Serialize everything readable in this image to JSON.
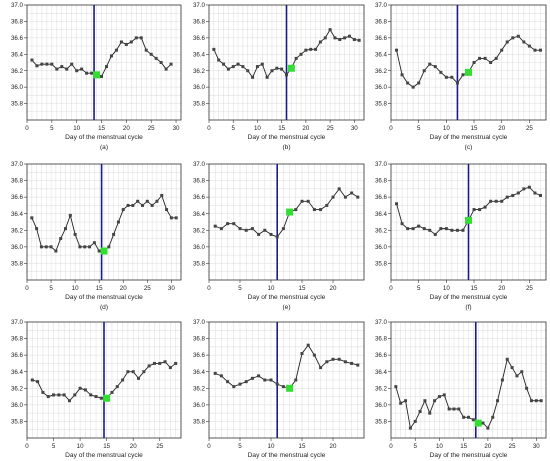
{
  "figure": {
    "x_axis_label": "Day of the menstrual cycle"
  },
  "colors": {
    "grid": "#d7d7d7",
    "frame": "#333333",
    "line": "#222222",
    "marker": "#444444",
    "ovulation_line": "#1a1a8c",
    "ovulation_marker": "#33dd33"
  },
  "chart_data": [
    {
      "type": "line",
      "label": "(a)",
      "xlim": [
        0,
        31
      ],
      "ylim": [
        35.6,
        37.0
      ],
      "xticks": [
        0,
        5,
        10,
        15,
        20,
        25,
        30
      ],
      "yticks": [
        35.8,
        36.0,
        36.2,
        36.4,
        36.6,
        36.8,
        37.0
      ],
      "ovulation_day": 13.5,
      "ovulation_point": {
        "x": 14,
        "y": 36.15
      },
      "x": [
        1,
        2,
        3,
        4,
        5,
        6,
        7,
        8,
        9,
        10,
        11,
        12,
        13,
        14,
        15,
        16,
        17,
        18,
        19,
        20,
        21,
        22,
        23,
        24,
        25,
        26,
        27,
        28,
        29
      ],
      "y": [
        36.33,
        36.26,
        36.28,
        36.28,
        36.28,
        36.22,
        36.25,
        36.22,
        36.28,
        36.2,
        36.22,
        36.17,
        36.17,
        36.15,
        36.13,
        36.25,
        36.38,
        36.45,
        36.55,
        36.52,
        36.55,
        36.6,
        36.6,
        36.45,
        36.4,
        36.35,
        36.3,
        36.22,
        36.28
      ]
    },
    {
      "type": "line",
      "label": "(b)",
      "xlim": [
        0,
        32
      ],
      "ylim": [
        35.6,
        37.0
      ],
      "xticks": [
        0,
        5,
        10,
        15,
        20,
        25,
        30
      ],
      "yticks": [
        35.8,
        36.0,
        36.2,
        36.4,
        36.6,
        36.8,
        37.0
      ],
      "ovulation_day": 16,
      "ovulation_point": {
        "x": 17,
        "y": 36.23
      },
      "x": [
        1,
        2,
        3,
        4,
        5,
        6,
        7,
        8,
        9,
        10,
        11,
        12,
        13,
        14,
        15,
        16,
        17,
        18,
        19,
        20,
        21,
        22,
        23,
        24,
        25,
        26,
        27,
        28,
        29,
        30,
        31
      ],
      "y": [
        36.46,
        36.33,
        36.28,
        36.22,
        36.25,
        36.28,
        36.25,
        36.2,
        36.12,
        36.25,
        36.28,
        36.12,
        36.2,
        36.23,
        36.22,
        36.15,
        36.23,
        36.35,
        36.4,
        36.45,
        36.46,
        36.46,
        36.55,
        36.6,
        36.7,
        36.6,
        36.58,
        36.6,
        36.62,
        36.58,
        36.57
      ]
    },
    {
      "type": "line",
      "label": "(c)",
      "xlim": [
        0,
        28
      ],
      "ylim": [
        35.6,
        37.0
      ],
      "xticks": [
        0,
        5,
        10,
        15,
        20,
        25
      ],
      "yticks": [
        35.8,
        36.0,
        36.2,
        36.4,
        36.6,
        36.8,
        37.0
      ],
      "ovulation_day": 12,
      "ovulation_point": {
        "x": 14,
        "y": 36.18
      },
      "x": [
        1,
        2,
        3,
        4,
        5,
        6,
        7,
        8,
        9,
        10,
        11,
        12,
        13,
        14,
        15,
        16,
        17,
        18,
        19,
        20,
        21,
        22,
        23,
        24,
        25,
        26,
        27
      ],
      "y": [
        36.45,
        36.15,
        36.05,
        36.0,
        36.05,
        36.2,
        36.28,
        36.25,
        36.18,
        36.12,
        36.12,
        36.05,
        36.15,
        36.18,
        36.3,
        36.35,
        36.35,
        36.3,
        36.35,
        36.45,
        36.55,
        36.6,
        36.62,
        36.55,
        36.5,
        36.45,
        36.45
      ]
    },
    {
      "type": "line",
      "label": "(d)",
      "xlim": [
        0,
        32
      ],
      "ylim": [
        35.6,
        37.0
      ],
      "xticks": [
        0,
        5,
        10,
        15,
        20,
        25,
        30
      ],
      "yticks": [
        35.8,
        36.0,
        36.2,
        36.4,
        36.6,
        36.8,
        37.0
      ],
      "ovulation_day": 15.5,
      "ovulation_point": {
        "x": 16,
        "y": 35.95
      },
      "x": [
        1,
        2,
        3,
        4,
        5,
        6,
        7,
        8,
        9,
        10,
        11,
        12,
        13,
        14,
        15,
        16,
        17,
        18,
        19,
        20,
        21,
        22,
        23,
        24,
        25,
        26,
        27,
        28,
        29,
        30,
        31
      ],
      "y": [
        36.35,
        36.22,
        36.0,
        36.0,
        36.0,
        35.95,
        36.1,
        36.22,
        36.38,
        36.15,
        36.0,
        36.0,
        36.0,
        36.05,
        35.95,
        35.95,
        36.0,
        36.15,
        36.3,
        36.45,
        36.5,
        36.5,
        36.55,
        36.5,
        36.55,
        36.5,
        36.55,
        36.62,
        36.45,
        36.35,
        36.35
      ]
    },
    {
      "type": "line",
      "label": "(e)",
      "xlim": [
        0,
        25
      ],
      "ylim": [
        35.6,
        37.0
      ],
      "xticks": [
        0,
        5,
        10,
        15,
        20
      ],
      "yticks": [
        35.8,
        36.0,
        36.2,
        36.4,
        36.6,
        36.8,
        37.0
      ],
      "ovulation_day": 11,
      "ovulation_point": {
        "x": 13,
        "y": 36.42
      },
      "x": [
        1,
        2,
        3,
        4,
        5,
        6,
        7,
        8,
        9,
        10,
        11,
        12,
        13,
        14,
        15,
        16,
        17,
        18,
        19,
        20,
        21,
        22,
        23,
        24
      ],
      "y": [
        36.25,
        36.22,
        36.28,
        36.28,
        36.22,
        36.2,
        36.22,
        36.15,
        36.2,
        36.15,
        36.12,
        36.22,
        36.42,
        36.45,
        36.55,
        36.55,
        36.45,
        36.45,
        36.5,
        36.6,
        36.7,
        36.6,
        36.65,
        36.6
      ]
    },
    {
      "type": "line",
      "label": "(f)",
      "xlim": [
        0,
        28
      ],
      "ylim": [
        35.6,
        37.0
      ],
      "xticks": [
        0,
        5,
        10,
        15,
        20,
        25
      ],
      "yticks": [
        35.8,
        36.0,
        36.2,
        36.4,
        36.6,
        36.8,
        37.0
      ],
      "ovulation_day": 14,
      "ovulation_point": {
        "x": 14,
        "y": 36.32
      },
      "x": [
        1,
        2,
        3,
        4,
        5,
        6,
        7,
        8,
        9,
        10,
        11,
        12,
        13,
        14,
        15,
        16,
        17,
        18,
        19,
        20,
        21,
        22,
        23,
        24,
        25,
        26,
        27
      ],
      "y": [
        36.52,
        36.28,
        36.22,
        36.22,
        36.25,
        36.22,
        36.2,
        36.15,
        36.22,
        36.22,
        36.2,
        36.2,
        36.2,
        36.32,
        36.45,
        36.45,
        36.48,
        36.55,
        36.55,
        36.55,
        36.6,
        36.62,
        36.65,
        36.7,
        36.72,
        36.65,
        36.62
      ]
    },
    {
      "type": "line",
      "label": "(g)",
      "xlim": [
        0,
        29
      ],
      "ylim": [
        35.6,
        37.0
      ],
      "xticks": [
        0,
        5,
        10,
        15,
        20,
        25
      ],
      "yticks": [
        35.8,
        36.0,
        36.2,
        36.4,
        36.6,
        36.8,
        37.0
      ],
      "ovulation_day": 14.5,
      "ovulation_point": {
        "x": 15,
        "y": 36.08
      },
      "x": [
        1,
        2,
        3,
        4,
        5,
        6,
        7,
        8,
        9,
        10,
        11,
        12,
        13,
        14,
        15,
        16,
        17,
        18,
        19,
        20,
        21,
        22,
        23,
        24,
        25,
        26,
        27,
        28
      ],
      "y": [
        36.3,
        36.28,
        36.15,
        36.1,
        36.12,
        36.12,
        36.12,
        36.05,
        36.12,
        36.2,
        36.18,
        36.12,
        36.1,
        36.08,
        36.08,
        36.15,
        36.22,
        36.3,
        36.4,
        36.4,
        36.32,
        36.4,
        36.47,
        36.5,
        36.5,
        36.52,
        36.45,
        36.5
      ]
    },
    {
      "type": "line",
      "label": "(h)",
      "xlim": [
        0,
        25
      ],
      "ylim": [
        35.6,
        37.0
      ],
      "xticks": [
        0,
        5,
        10,
        15,
        20
      ],
      "yticks": [
        35.8,
        36.0,
        36.2,
        36.4,
        36.6,
        36.8,
        37.0
      ],
      "ovulation_day": 11,
      "ovulation_point": {
        "x": 13,
        "y": 36.2
      },
      "x": [
        1,
        2,
        3,
        4,
        5,
        6,
        7,
        8,
        9,
        10,
        11,
        12,
        13,
        14,
        15,
        16,
        17,
        18,
        19,
        20,
        21,
        22,
        23,
        24
      ],
      "y": [
        36.38,
        36.35,
        36.28,
        36.22,
        36.25,
        36.28,
        36.32,
        36.35,
        36.3,
        36.3,
        36.25,
        36.22,
        36.2,
        36.3,
        36.62,
        36.72,
        36.6,
        36.45,
        36.52,
        36.55,
        36.55,
        36.52,
        36.5,
        36.48
      ]
    },
    {
      "type": "line",
      "label": "(i)",
      "xlim": [
        0,
        32
      ],
      "ylim": [
        35.6,
        37.0
      ],
      "xticks": [
        0,
        5,
        10,
        15,
        20,
        25,
        30
      ],
      "yticks": [
        35.8,
        36.0,
        36.2,
        36.4,
        36.6,
        36.8,
        37.0
      ],
      "ovulation_day": 17.5,
      "ovulation_point": {
        "x": 18,
        "y": 35.78
      },
      "x": [
        1,
        2,
        3,
        4,
        5,
        6,
        7,
        8,
        9,
        10,
        11,
        12,
        13,
        14,
        15,
        16,
        17,
        18,
        19,
        20,
        21,
        22,
        23,
        24,
        25,
        26,
        27,
        28,
        29,
        30,
        31
      ],
      "y": [
        36.22,
        36.02,
        36.05,
        35.72,
        35.8,
        35.92,
        36.05,
        35.9,
        36.05,
        36.1,
        36.12,
        35.95,
        35.95,
        35.95,
        35.85,
        35.85,
        35.82,
        35.78,
        35.78,
        35.72,
        35.85,
        36.05,
        36.3,
        36.55,
        36.45,
        36.35,
        36.4,
        36.2,
        36.05,
        36.05,
        36.05
      ]
    }
  ]
}
